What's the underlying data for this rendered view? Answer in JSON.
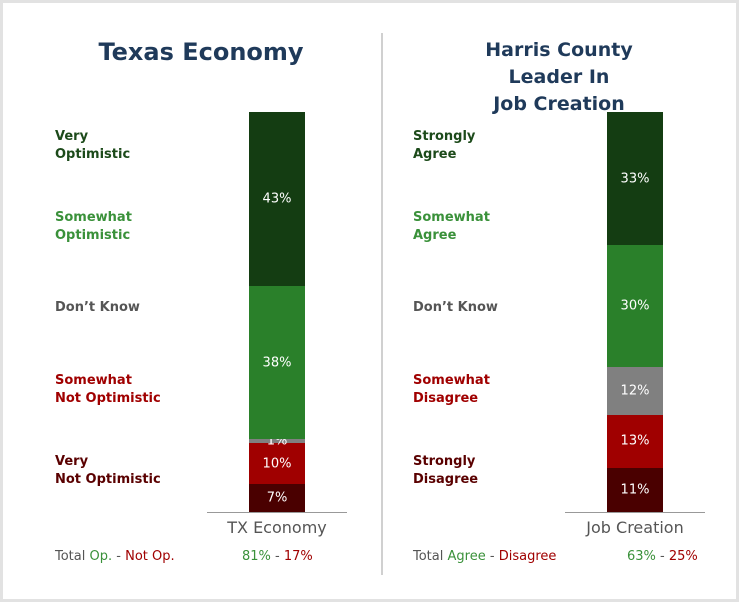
{
  "chart_data": [
    {
      "type": "stacked-bar",
      "title": "Texas Economy",
      "categories": [
        "TX Economy"
      ],
      "ylim": [
        0,
        100
      ],
      "series": [
        {
          "name": "Very\nOptimistic",
          "color": "#143d12",
          "label_color": "#1c4a1a",
          "values": [
            43
          ],
          "value_labels": [
            "43%"
          ]
        },
        {
          "name": "Somewhat\nOptimistic",
          "color": "#2a802a",
          "label_color": "#3a913a",
          "values": [
            38
          ],
          "value_labels": [
            "38%"
          ]
        },
        {
          "name": "Don’t Know",
          "color": "#808080",
          "label_color": "#555555",
          "values": [
            1
          ],
          "value_labels": [
            "1%"
          ]
        },
        {
          "name": "Somewhat\nNot Optimistic",
          "color": "#a00000",
          "label_color": "#a00000",
          "values": [
            10
          ],
          "value_labels": [
            "10%"
          ]
        },
        {
          "name": "Very\nNot Optimistic",
          "color": "#4a0000",
          "label_color": "#5a0000",
          "values": [
            7
          ],
          "value_labels": [
            "7%"
          ]
        }
      ],
      "totals": {
        "label": "Total",
        "separator": "-",
        "names": [
          "Op.",
          "Not Op."
        ],
        "values": [
          81,
          17
        ],
        "value_labels": [
          "81%",
          "17%"
        ],
        "colors": [
          "#3a913a",
          "#a00000"
        ]
      }
    },
    {
      "type": "stacked-bar",
      "title": "Harris County Leader In\nJob Creation",
      "categories": [
        "Job Creation"
      ],
      "ylim": [
        0,
        100
      ],
      "series": [
        {
          "name": "Strongly\nAgree",
          "color": "#143d12",
          "label_color": "#1c4a1a",
          "values": [
            33
          ],
          "value_labels": [
            "33%"
          ]
        },
        {
          "name": "Somewhat\nAgree",
          "color": "#2a802a",
          "label_color": "#3a913a",
          "values": [
            30
          ],
          "value_labels": [
            "30%"
          ]
        },
        {
          "name": "Don’t Know",
          "color": "#808080",
          "label_color": "#555555",
          "values": [
            12
          ],
          "value_labels": [
            "12%"
          ]
        },
        {
          "name": "Somewhat\nDisagree",
          "color": "#a00000",
          "label_color": "#a00000",
          "values": [
            13
          ],
          "value_labels": [
            "13%"
          ]
        },
        {
          "name": "Strongly\nDisagree",
          "color": "#4a0000",
          "label_color": "#5a0000",
          "values": [
            11
          ],
          "value_labels": [
            "11%"
          ]
        }
      ],
      "totals": {
        "label": "Total",
        "separator": "-",
        "names": [
          "Agree",
          "Disagree"
        ],
        "values": [
          63,
          25
        ],
        "value_labels": [
          "63%",
          "25%"
        ],
        "colors": [
          "#3a913a",
          "#a00000"
        ]
      }
    }
  ]
}
